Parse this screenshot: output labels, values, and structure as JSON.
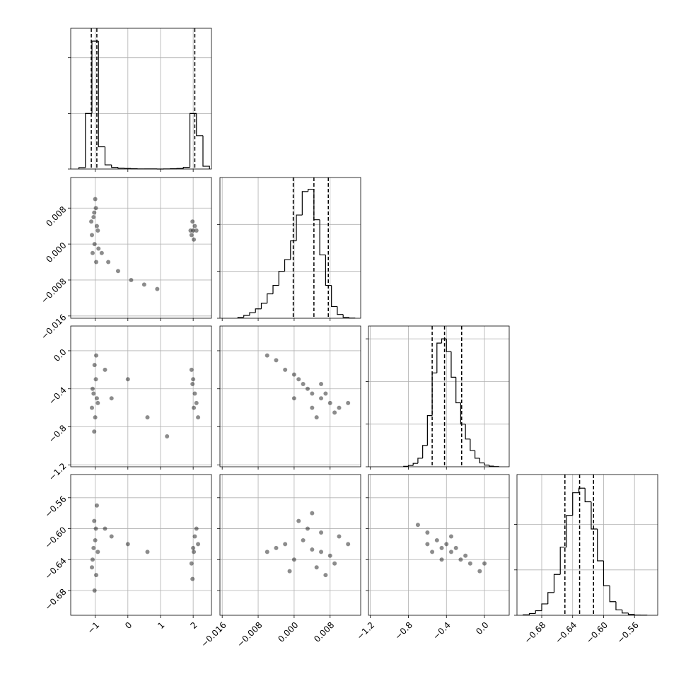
{
  "chart_data": {
    "type": "corner",
    "params": [
      {
        "lim": [
          -1.75,
          2.56
        ],
        "ticks": [
          {
            "value": -1,
            "label": "−1"
          },
          0,
          1,
          2
        ]
      },
      {
        "lim": [
          -0.0165,
          0.0148
        ],
        "ticks": [
          {
            "value": -0.016,
            "label": "−0.016"
          },
          {
            "value": -0.008,
            "label": "−0.008"
          },
          {
            "value": 0,
            "label": "0.000"
          },
          0.008
        ]
      },
      {
        "lim": [
          -1.22,
          0.26
        ],
        "ticks": [
          {
            "value": -1.2,
            "label": "−1.2"
          },
          {
            "value": -0.8,
            "label": "−0.8"
          },
          {
            "value": -0.4,
            "label": "−0.4"
          },
          {
            "value": 0,
            "label": "0.0"
          }
        ]
      },
      {
        "lim": [
          -0.712,
          -0.53
        ],
        "ticks": [
          {
            "value": -0.68,
            "label": "−0.68"
          },
          {
            "value": -0.64,
            "label": "−0.64"
          },
          {
            "value": -0.6,
            "label": "−0.60"
          },
          {
            "value": -0.56,
            "label": "−0.56"
          }
        ]
      }
    ],
    "histograms": [
      {
        "bins": [
          -1.5,
          -1.3,
          -1.1,
          -0.9,
          -0.7,
          -0.5,
          -0.3,
          -0.1,
          0.1,
          0.3,
          0.5,
          0.7,
          0.9,
          1.1,
          1.3,
          1.5,
          1.7,
          1.9,
          2.1,
          2.3,
          2.5
        ],
        "counts": [
          50,
          2000,
          4600,
          800,
          150,
          60,
          30,
          20,
          10,
          5,
          5,
          5,
          0,
          5,
          10,
          20,
          60,
          2000,
          1200,
          100
        ],
        "ylim": [
          0,
          5060
        ],
        "yticks": [
          0,
          2000,
          4000
        ],
        "quantiles": [
          -1.12,
          -0.95,
          2.05
        ]
      },
      {
        "bins": [
          -0.0125,
          -0.0112,
          -0.0099,
          -0.0086,
          -0.0073,
          -0.006,
          -0.0047,
          -0.0034,
          -0.0021,
          -0.0008,
          0.0005,
          0.0018,
          0.0031,
          0.0044,
          0.0057,
          0.007,
          0.0083,
          0.0096,
          0.0109,
          0.0122,
          0.0135
        ],
        "counts": [
          20,
          60,
          120,
          200,
          320,
          520,
          700,
          1000,
          1250,
          1650,
          2200,
          2700,
          2750,
          2100,
          1350,
          700,
          250,
          80,
          20,
          5
        ],
        "ylim": [
          0,
          3000
        ],
        "yticks": [
          0,
          1000,
          2000
        ],
        "quantiles": [
          -0.0002,
          0.0044,
          0.0076
        ]
      },
      {
        "bins": [
          -0.85,
          -0.8,
          -0.75,
          -0.7,
          -0.65,
          -0.6,
          -0.55,
          -0.5,
          -0.45,
          -0.4,
          -0.35,
          -0.3,
          -0.25,
          -0.2,
          -0.15,
          -0.1,
          -0.05,
          0,
          0.05,
          0.1,
          0.15
        ],
        "counts": [
          10,
          30,
          80,
          200,
          500,
          1200,
          2200,
          2900,
          3000,
          2700,
          2100,
          1500,
          1000,
          650,
          380,
          200,
          90,
          40,
          15,
          5
        ],
        "ylim": [
          0,
          3300
        ],
        "yticks": [
          0,
          1000,
          2000,
          3000
        ],
        "quantiles": [
          -0.55,
          -0.42,
          -0.24
        ]
      },
      {
        "bins": [
          -0.704,
          -0.696,
          -0.688,
          -0.68,
          -0.672,
          -0.664,
          -0.656,
          -0.648,
          -0.64,
          -0.632,
          -0.624,
          -0.616,
          -0.608,
          -0.6,
          -0.592,
          -0.584,
          -0.576,
          -0.568,
          -0.56,
          -0.552,
          -0.544
        ],
        "counts": [
          10,
          40,
          100,
          250,
          500,
          900,
          1500,
          2200,
          2700,
          2800,
          2500,
          1900,
          1200,
          650,
          300,
          120,
          50,
          20,
          5,
          2
        ],
        "ylim": [
          0,
          3100
        ],
        "yticks": [
          0,
          1000,
          2000
        ],
        "quantiles": [
          -0.65,
          -0.631,
          -0.613
        ]
      }
    ],
    "panels": [
      {
        "x": [
          -1.05,
          -0.98,
          -1.1,
          -0.95,
          -1.02,
          -1.0,
          -1.08,
          -0.92,
          -1.03,
          -0.97,
          -1.12,
          -0.9,
          2.0,
          2.05,
          1.95,
          2.1,
          1.98,
          2.02,
          1.92,
          -0.6,
          -0.3,
          0.1,
          0.5,
          -0.8,
          0.9
        ],
        "y": [
          0.006,
          0.008,
          0.002,
          0.004,
          0.0,
          0.01,
          -0.002,
          0.003,
          0.007,
          -0.004,
          0.005,
          -0.001,
          0.003,
          0.004,
          0.002,
          0.003,
          0.005,
          0.001,
          0.003,
          -0.004,
          -0.006,
          -0.008,
          -0.009,
          -0.002,
          -0.01
        ]
      },
      {
        "x": [
          -1.05,
          -0.98,
          -1.1,
          -0.95,
          -1.02,
          -1.0,
          -1.08,
          -0.92,
          -1.03,
          -0.97,
          2.0,
          2.05,
          1.95,
          2.1,
          1.98,
          2.02,
          2.15,
          -0.5,
          0.0,
          0.6,
          1.2,
          -0.7
        ],
        "y": [
          -0.45,
          -0.3,
          -0.6,
          -0.5,
          -0.15,
          -0.7,
          -0.4,
          -0.55,
          -0.85,
          -0.05,
          -0.3,
          -0.45,
          -0.2,
          -0.55,
          -0.35,
          -0.6,
          -0.7,
          -0.5,
          -0.3,
          -0.7,
          -0.9,
          -0.2
        ]
      },
      {
        "x": [
          0.004,
          0.006,
          0.002,
          0.0,
          -0.002,
          0.008,
          0.01,
          0.003,
          0.005,
          -0.004,
          0.007,
          0.001,
          0.009,
          -0.006,
          0.012,
          0.004,
          0.0,
          0.006
        ],
        "y": [
          -0.45,
          -0.5,
          -0.35,
          -0.25,
          -0.2,
          -0.55,
          -0.6,
          -0.4,
          -0.7,
          -0.1,
          -0.45,
          -0.3,
          -0.65,
          -0.05,
          -0.55,
          -0.6,
          -0.5,
          -0.35
        ]
      },
      {
        "x": [
          -1.05,
          -0.98,
          -1.1,
          -0.95,
          -1.02,
          -1.0,
          -1.08,
          -0.92,
          -1.03,
          -0.97,
          2.0,
          2.05,
          1.95,
          2.1,
          1.98,
          2.02,
          2.15,
          -0.5,
          0.0,
          0.6,
          -0.7
        ],
        "y": [
          -0.625,
          -0.6,
          -0.65,
          -0.57,
          -0.68,
          -0.615,
          -0.64,
          -0.63,
          -0.59,
          -0.66,
          -0.625,
          -0.61,
          -0.645,
          -0.6,
          -0.665,
          -0.63,
          -0.62,
          -0.61,
          -0.62,
          -0.63,
          -0.6
        ]
      },
      {
        "x": [
          0.004,
          0.006,
          0.002,
          0.0,
          -0.002,
          0.008,
          0.01,
          0.003,
          0.005,
          -0.004,
          0.007,
          0.001,
          0.009,
          -0.006,
          0.012,
          0.004,
          -0.001,
          0.006
        ],
        "y": [
          -0.627,
          -0.63,
          -0.615,
          -0.64,
          -0.62,
          -0.635,
          -0.61,
          -0.6,
          -0.65,
          -0.625,
          -0.66,
          -0.59,
          -0.645,
          -0.63,
          -0.62,
          -0.58,
          -0.655,
          -0.605
        ]
      },
      {
        "x": [
          -0.45,
          -0.5,
          -0.35,
          -0.6,
          -0.25,
          -0.4,
          -0.15,
          -0.55,
          -0.3,
          -0.7,
          -0.05,
          -0.45,
          -0.2,
          -0.35,
          -0.6,
          0.0
        ],
        "y": [
          -0.625,
          -0.615,
          -0.63,
          -0.605,
          -0.64,
          -0.62,
          -0.645,
          -0.63,
          -0.625,
          -0.595,
          -0.655,
          -0.64,
          -0.635,
          -0.61,
          -0.62,
          -0.645
        ]
      }
    ]
  }
}
